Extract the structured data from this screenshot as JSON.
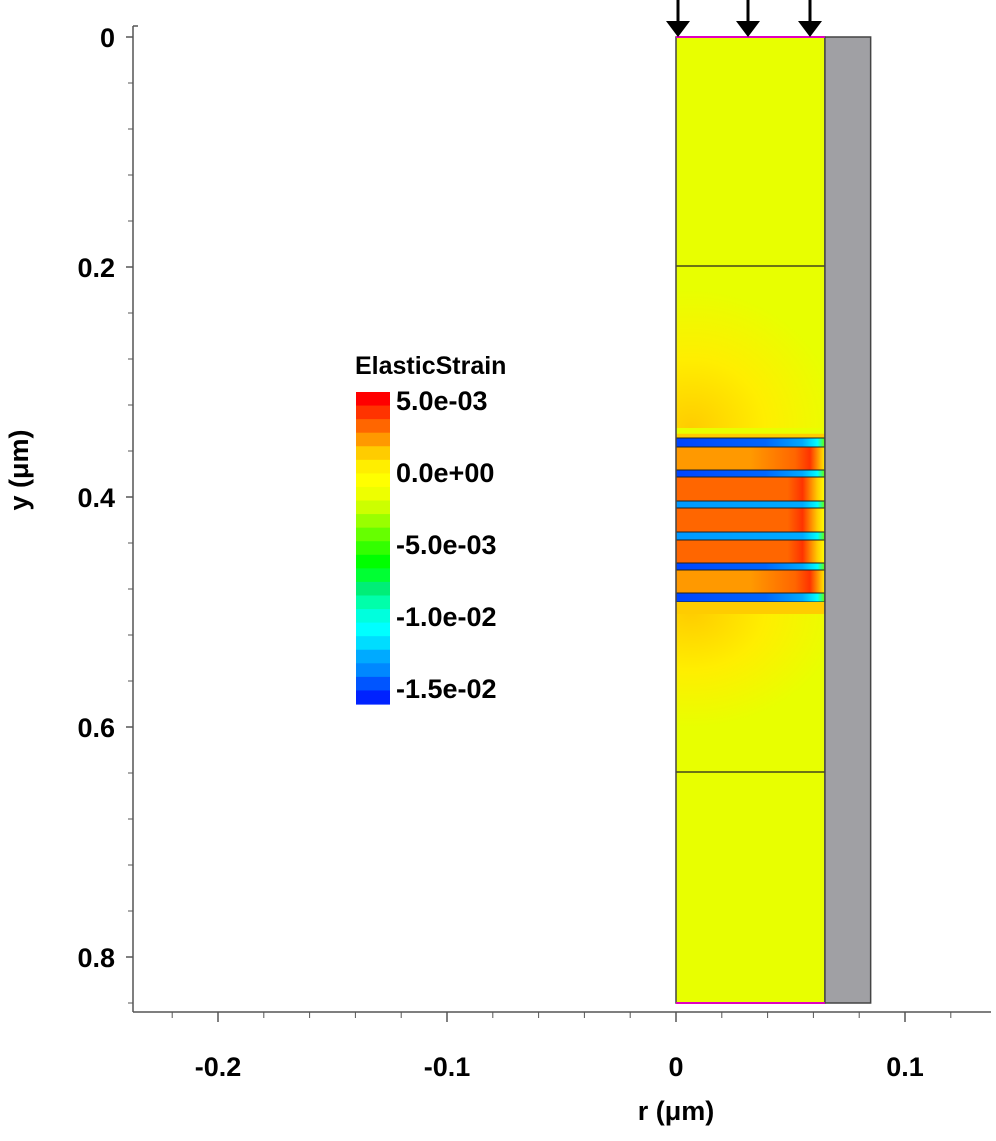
{
  "chart_data": {
    "type": "heatmap",
    "title": "",
    "xlabel": "r (μm)",
    "ylabel": "y (μm)",
    "xlim": [
      -0.237,
      0.138
    ],
    "ylim": [
      0.855,
      -0.005
    ],
    "y_inverted": true,
    "x_ticks": [
      -0.2,
      -0.1,
      0,
      0.1
    ],
    "x_tick_labels": [
      "-0.2",
      "-0.1",
      "0",
      "0.1"
    ],
    "x_minor_step": 0.02,
    "y_ticks": [
      0,
      0.2,
      0.4,
      0.6,
      0.8
    ],
    "y_tick_labels": [
      "0",
      "0.2",
      "0.4",
      "0.6",
      "0.8"
    ],
    "y_minor_step": 0.04,
    "grid": false,
    "colorbar": {
      "title": "ElasticStrain",
      "range": [
        -0.015,
        0.005
      ],
      "tick_labels": [
        "5.0e-03",
        "0.0e+00",
        "-5.0e-03",
        "-1.0e-02",
        "-1.5e-02"
      ],
      "colors": [
        "#ff0000",
        "#ff3300",
        "#ff6600",
        "#ff9900",
        "#ffcc00",
        "#ffee00",
        "#ffff00",
        "#eeff00",
        "#ccff00",
        "#99ff00",
        "#66ff00",
        "#33ff00",
        "#00ff00",
        "#00ff33",
        "#00ee77",
        "#00ffaa",
        "#00ffdd",
        "#00ffff",
        "#00ddff",
        "#00aaff",
        "#0088ff",
        "#0055ff",
        "#0022ff"
      ],
      "placement": "left-center"
    },
    "domain": {
      "film_r": [
        0,
        0.065
      ],
      "substrate_r": [
        0.065,
        0.085
      ],
      "y_range": [
        0,
        0.84
      ],
      "film_color": "#e8ff00",
      "substrate_color": "#a0a0a4"
    },
    "load_arrows": 3
  }
}
